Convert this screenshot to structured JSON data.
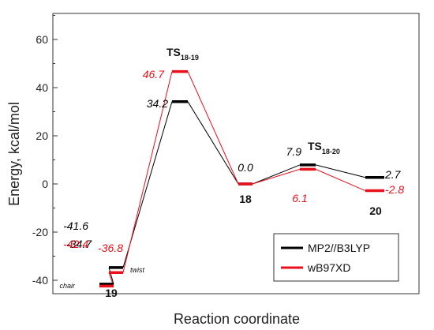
{
  "chart_data": {
    "type": "line",
    "xlabel": "Reaction coordinate",
    "ylabel": "Energy, kcal/mol",
    "ylim": [
      -45,
      70
    ],
    "yticks": [
      -40,
      -20,
      0,
      20,
      40,
      60
    ],
    "legend_position": "bottom-right",
    "states": [
      {
        "id": "chair",
        "label": "chair",
        "state_label": ""
      },
      {
        "id": "twist",
        "label": "twist",
        "state_label": ""
      },
      {
        "id": "ts1819",
        "label": "",
        "state_label": "TS",
        "state_sub": "18-19"
      },
      {
        "id": "s18",
        "label": "",
        "state_label": "18"
      },
      {
        "id": "ts1820",
        "label": "",
        "state_label": "TS",
        "state_sub": "18-20"
      },
      {
        "id": "s20",
        "label": "",
        "state_label": "20"
      }
    ],
    "group_label": "19",
    "series": [
      {
        "name": "MP2//B3LYP",
        "color": "#000000",
        "values": [
          -41.6,
          -34.7,
          34.2,
          0.0,
          7.9,
          2.7
        ],
        "labels": [
          "-41.6",
          "-34.7",
          "34.2",
          "0.0",
          "7.9",
          "2.7"
        ]
      },
      {
        "name": "wB97XD",
        "color": "#e8101a",
        "values": [
          -42.4,
          -36.8,
          46.7,
          0.0,
          6.1,
          -2.8
        ],
        "labels": [
          "-42.4",
          "-36.8",
          "46.7",
          "",
          "6.1",
          "-2.8"
        ]
      }
    ]
  }
}
